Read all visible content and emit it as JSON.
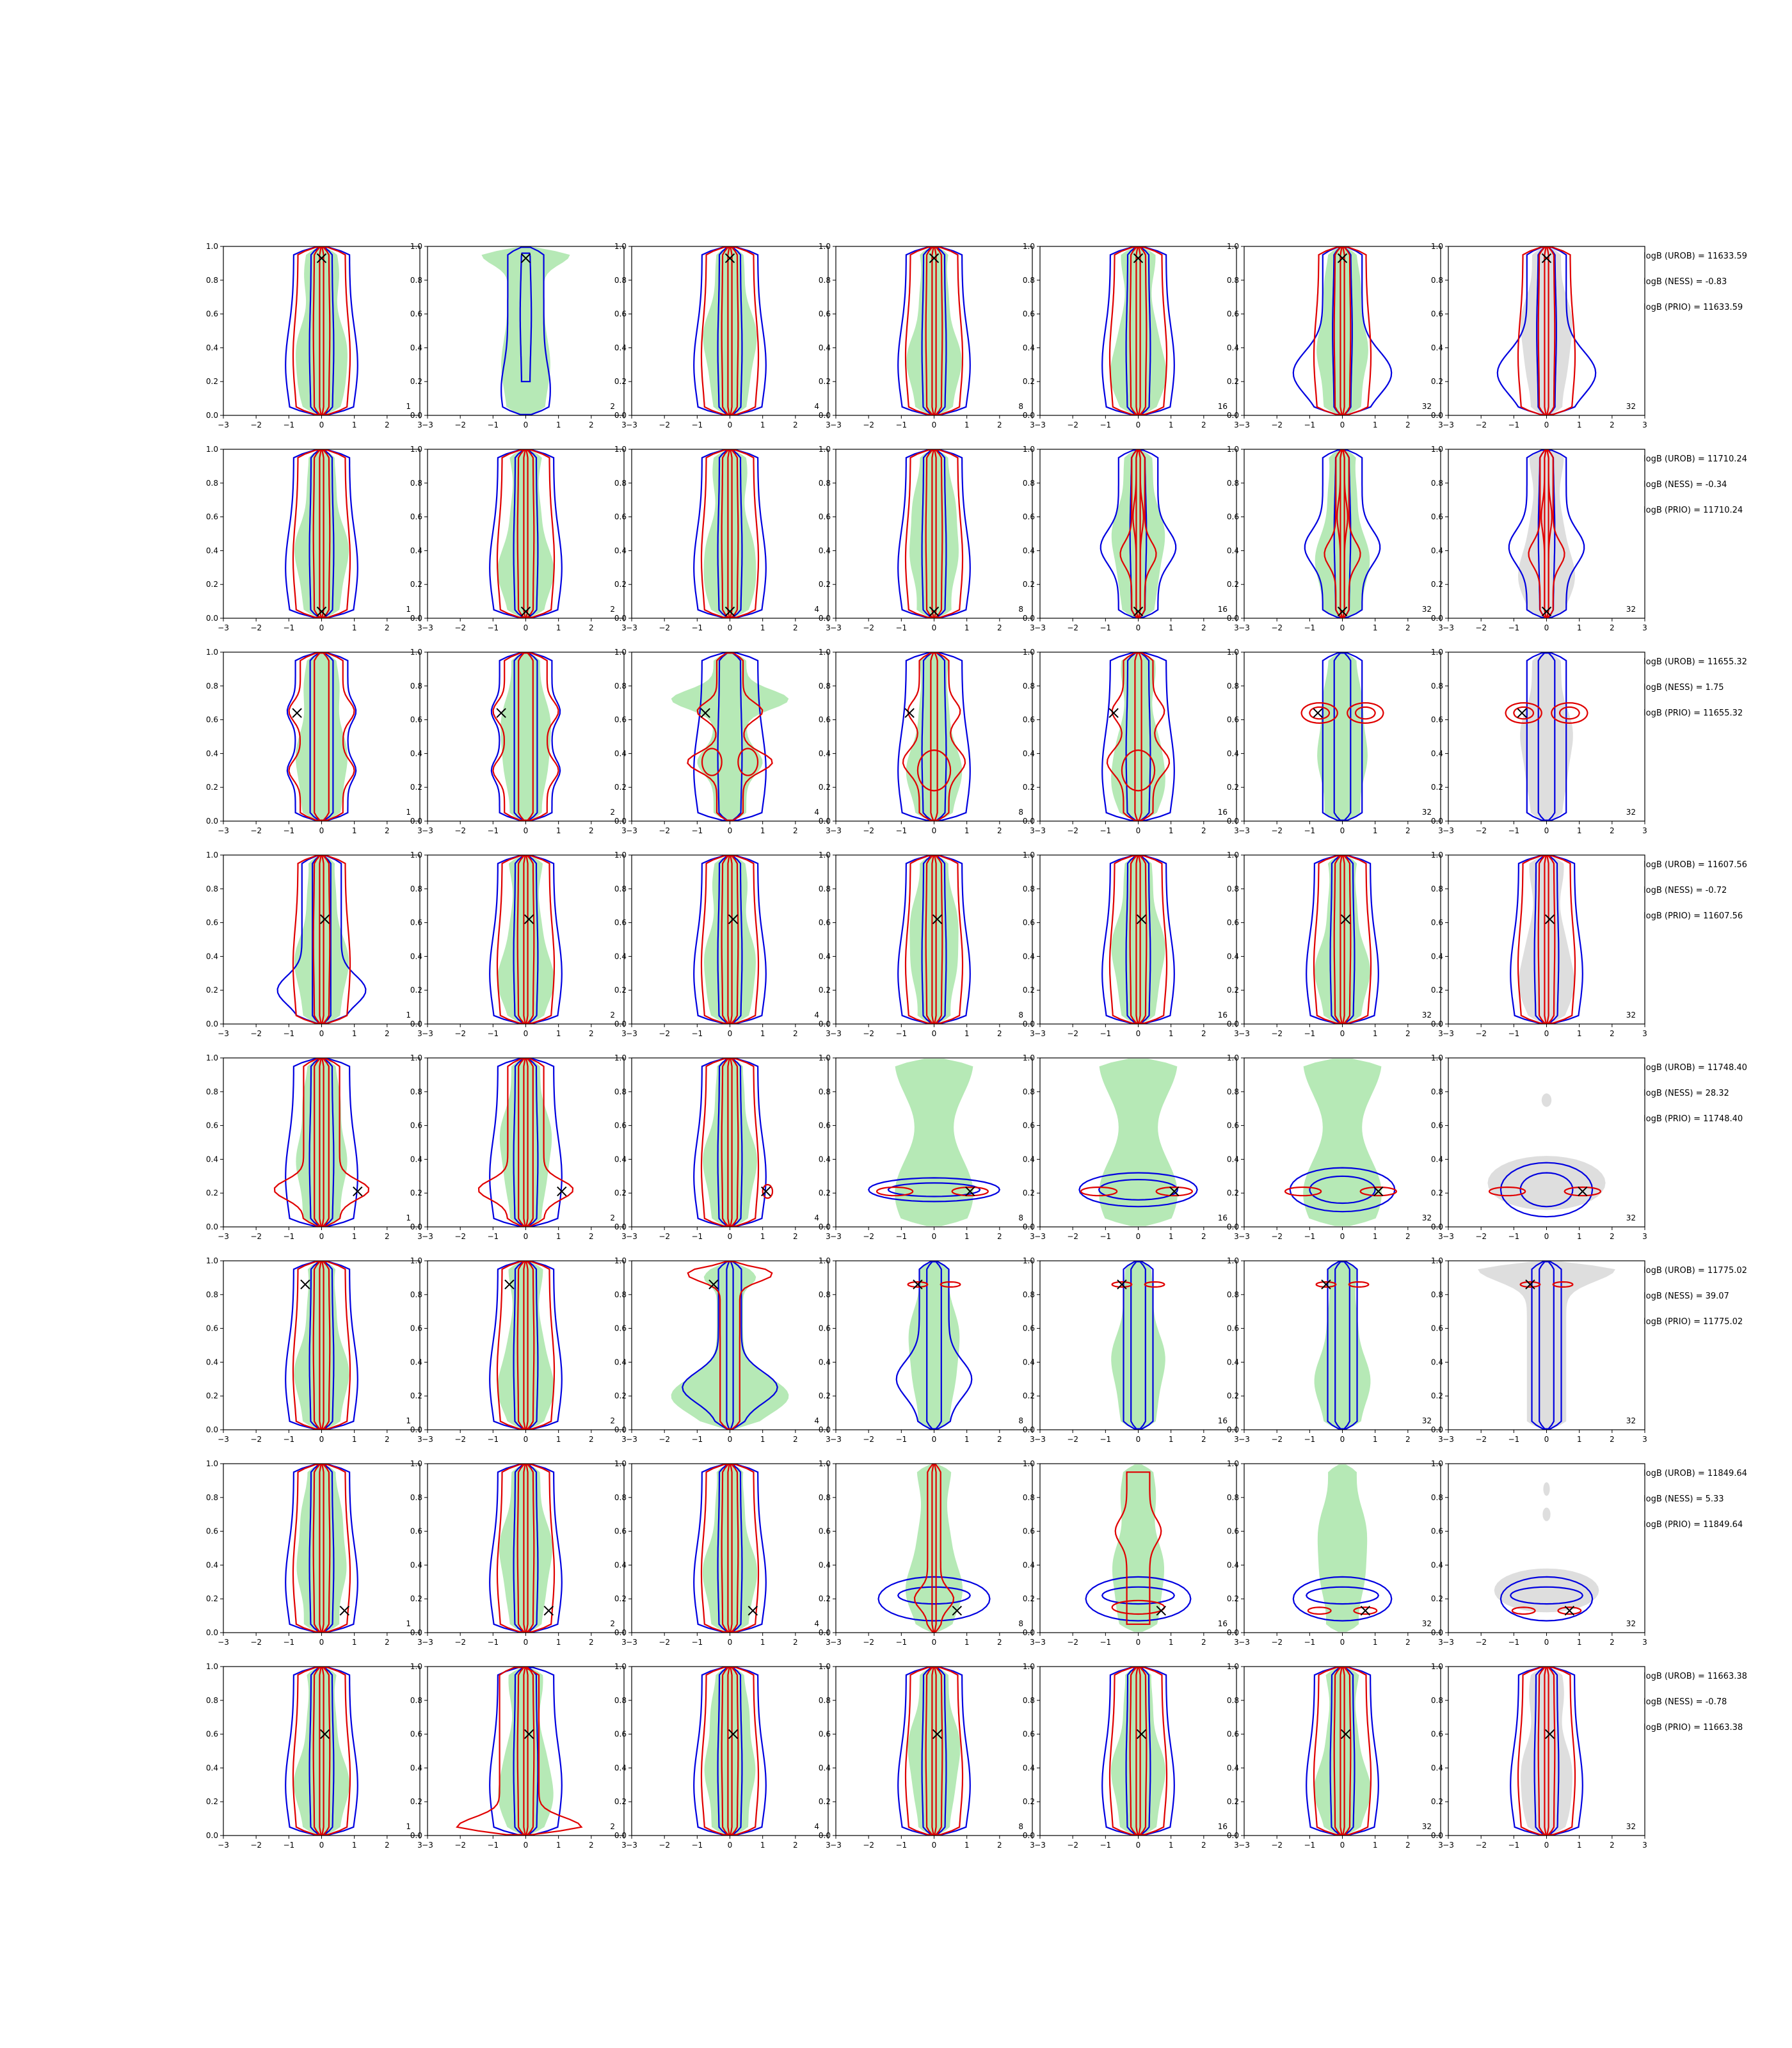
{
  "figure": {
    "columns": [
      "1",
      "2",
      "4",
      "8",
      "16",
      "32",
      "32"
    ],
    "x_ticks": [
      "−3",
      "−2",
      "−1",
      "0",
      "1",
      "2",
      "3"
    ],
    "y_ticks": [
      "0.0",
      "0.2",
      "0.4",
      "0.6",
      "0.8",
      "1.0"
    ],
    "colors": {
      "fill_green": "#b6e9b6",
      "fill_grey": "#dedede",
      "contour_blue": "#0000e0",
      "contour_red": "#e00000",
      "marker": "#000000"
    }
  },
  "rows": [
    {
      "labels": {
        "urob": "logB (UROB) = 11633.59",
        "ness": "logB (NESS) = -0.83",
        "prio": "logB (PRIO) = 11633.59"
      }
    },
    {
      "labels": {
        "urob": "logB (UROB) = 11710.24",
        "ness": "logB (NESS) = -0.34",
        "prio": "logB (PRIO) = 11710.24"
      }
    },
    {
      "labels": {
        "urob": "logB (UROB) = 11655.32",
        "ness": "logB (NESS) = 1.75",
        "prio": "logB (PRIO) = 11655.32"
      }
    },
    {
      "labels": {
        "urob": "logB (UROB) = 11607.56",
        "ness": "logB (NESS) = -0.72",
        "prio": "logB (PRIO) = 11607.56"
      }
    },
    {
      "labels": {
        "urob": "logB (UROB) = 11748.40",
        "ness": "logB (NESS) = 28.32",
        "prio": "logB (PRIO) = 11748.40"
      }
    },
    {
      "labels": {
        "urob": "logB (UROB) = 11775.02",
        "ness": "logB (NESS) = 39.07",
        "prio": "logB (PRIO) = 11775.02"
      }
    },
    {
      "labels": {
        "urob": "logB (UROB) = 11849.64",
        "ness": "logB (NESS) = 5.33",
        "prio": "logB (PRIO) = 11849.64"
      }
    },
    {
      "labels": {
        "urob": "logB (UROB) = 11663.38",
        "ness": "logB (NESS) = -0.78",
        "prio": "logB (PRIO) = 11663.38"
      }
    }
  ],
  "chart_data": {
    "type": "contour",
    "xlim": [
      -3,
      3
    ],
    "ylim": [
      0,
      1
    ],
    "grid": false,
    "panel_labels": [
      "1",
      "2",
      "4",
      "8",
      "16",
      "32",
      "32"
    ],
    "markers": [
      {
        "row": 1,
        "x": 0.0,
        "y": 0.93
      },
      {
        "row": 2,
        "x": 0.0,
        "y": 0.04
      },
      {
        "row": 3,
        "x": -0.75,
        "y": 0.64
      },
      {
        "row": 4,
        "x": 0.1,
        "y": 0.62
      },
      {
        "row": 5,
        "x": 1.1,
        "y": 0.21
      },
      {
        "row": 6,
        "x": -0.5,
        "y": 0.86
      },
      {
        "row": 7,
        "x": 0.7,
        "y": 0.13
      },
      {
        "row": 8,
        "x": 0.1,
        "y": 0.6
      }
    ]
  }
}
